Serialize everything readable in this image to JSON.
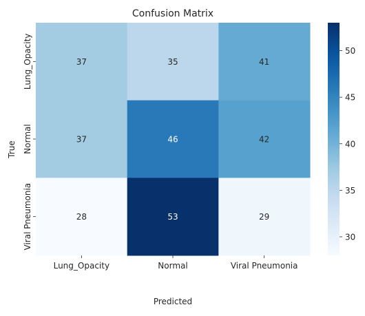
{
  "chart_data": {
    "type": "heatmap",
    "title": "Confusion Matrix",
    "xlabel": "Predicted",
    "ylabel": "True",
    "x_categories": [
      "Lung_Opacity",
      "Normal",
      "Viral Pneumonia"
    ],
    "y_categories": [
      "Lung_Opacity",
      "Normal",
      "Viral Pneumonia"
    ],
    "values": [
      [
        37,
        35,
        41
      ],
      [
        37,
        46,
        42
      ],
      [
        28,
        53,
        29
      ]
    ],
    "colormap": "Blues",
    "colorbar": {
      "vmin": 28,
      "vmax": 53,
      "ticks": [
        30,
        35,
        40,
        45,
        50
      ]
    },
    "annotations": true,
    "colors": {
      "low": "#f7fbff",
      "high": "#08306b",
      "text_dark": "#262626",
      "text_light": "#ffffff"
    }
  }
}
